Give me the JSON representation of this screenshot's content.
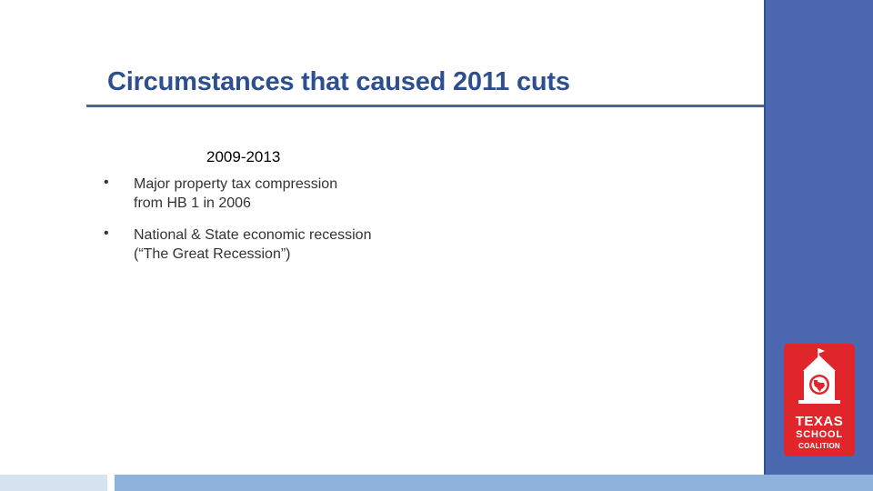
{
  "slide": {
    "title": "Circumstances that caused 2011 cuts",
    "subheading": "2009-2013",
    "bullets": [
      {
        "marker": "•",
        "lines": [
          "Major property tax compression",
          "from HB 1 in 2006"
        ]
      },
      {
        "marker": "•",
        "lines": [
          "National & State economic recession",
          "(“The Great Recession”)"
        ]
      }
    ]
  },
  "logo": {
    "line1": "TEXAS",
    "line2": "SCHOOL",
    "line3": "COALITION",
    "icon": "schoolhouse-icon"
  },
  "colors": {
    "title": "#2E4F8E",
    "rule": "#4D6790",
    "panel": "#4A67B0",
    "bottom_bar_light": "#D6E3F1",
    "bottom_bar": "#8FB2DC",
    "logo_red": "#E0262B"
  }
}
